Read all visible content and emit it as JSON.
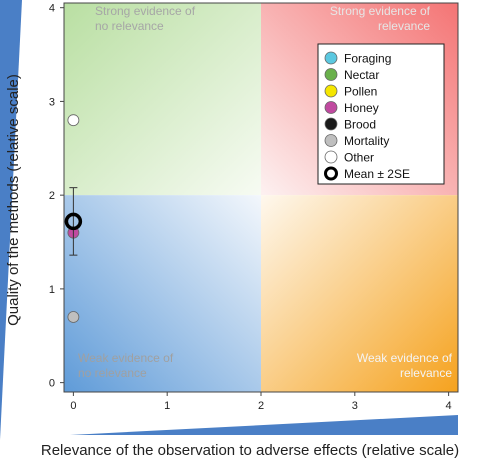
{
  "chart_data": {
    "type": "scatter",
    "x_label": "Relevance of the observation to adverse effects (relative scale)",
    "y_label": "Quality of the methods (relative scale)",
    "xlim": [
      -0.1,
      4.1
    ],
    "ylim": [
      -0.1,
      4.05
    ],
    "xticks": [
      0,
      1,
      2,
      3,
      4
    ],
    "yticks": [
      0,
      1,
      2,
      3,
      4
    ],
    "annotations": [
      [
        "Strong evidence of",
        "no relevance"
      ],
      [
        "Strong evidence of",
        "relevance"
      ],
      [
        "Weak evidence of",
        "no relevance"
      ],
      [
        "Weak evidence of",
        "relevance"
      ]
    ],
    "legend": "upper right",
    "series": [
      {
        "name": "Foraging",
        "color": "#5bc8e0",
        "x": [],
        "values": []
      },
      {
        "name": "Nectar",
        "color": "#6ab04c",
        "x": [],
        "values": []
      },
      {
        "name": "Pollen",
        "color": "#f5e600",
        "x": [],
        "values": []
      },
      {
        "name": "Honey",
        "color": "#c04aa0",
        "x": [
          0
        ],
        "values": [
          1.6
        ]
      },
      {
        "name": "Brood",
        "color": "#1a1a1a",
        "x": [],
        "values": []
      },
      {
        "name": "Mortality",
        "color": "#bfbfbf",
        "x": [
          0
        ],
        "values": [
          0.7
        ]
      },
      {
        "name": "Other",
        "color": "#ffffff",
        "x": [
          0
        ],
        "values": [
          2.8
        ]
      },
      {
        "name": "Mean ± 2SE",
        "color": "#000000",
        "x": [
          0
        ],
        "values": [
          1.72
        ],
        "error": [
          0.36
        ]
      }
    ]
  }
}
